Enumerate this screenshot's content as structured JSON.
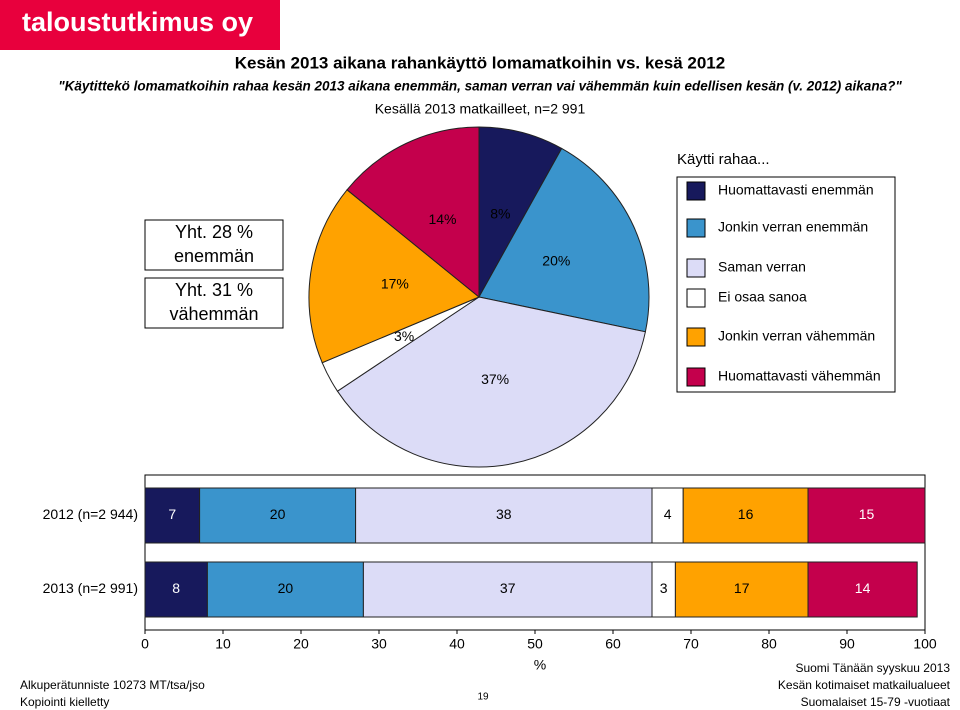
{
  "header": {
    "logo": "taloustutkimus oy",
    "title": "Kesän 2013 aikana rahankäyttö lomamatkoihin vs. kesä 2012",
    "subtitle": "\"Käytittekö lomamatkoihin rahaa kesän 2013 aikana enemmän, saman verran vai vähemmän kuin edellisen kesän (v. 2012) aikana?\""
  },
  "chart_data": [
    {
      "type": "pie",
      "title": "Kesällä 2013 matkailleet, n=2 991",
      "values": [
        8,
        20,
        37,
        3,
        17,
        14
      ],
      "value_labels": [
        "8%",
        "20%",
        "37%",
        "3%",
        "17%",
        "14%"
      ],
      "colors": [
        "#17195c",
        "#3a94cc",
        "#dcdcf7",
        "#ffffff",
        "#ffa200",
        "#c4004c"
      ],
      "annotations": [
        [
          "Yht. 28 %",
          "enemmän"
        ],
        [
          "Yht. 31 %",
          "vähemmän"
        ]
      ]
    },
    {
      "type": "stacked-bar",
      "orientation": "horizontal",
      "categories": [
        "2012 (n=2 944)",
        "2013 (n=2 991)"
      ],
      "legend_title": "Käytti rahaa...",
      "legend": "right",
      "series": [
        {
          "name": "Huomattavasti enemmän",
          "color": "#17195c",
          "values": [
            7,
            8
          ]
        },
        {
          "name": "Jonkin verran enemmän",
          "color": "#3a94cc",
          "values": [
            20,
            20
          ]
        },
        {
          "name": "Saman verran",
          "color": "#dcdcf7",
          "values": [
            38,
            37
          ]
        },
        {
          "name": "Ei osaa sanoa",
          "color": "#ffffff",
          "values": [
            4,
            3
          ]
        },
        {
          "name": "Jonkin verran vähemmän",
          "color": "#ffa200",
          "values": [
            16,
            17
          ]
        },
        {
          "name": "Huomattavasti vähemmän",
          "color": "#c4004c",
          "values": [
            15,
            14
          ]
        }
      ],
      "xlabel": "%",
      "xlim": [
        0,
        100
      ],
      "xticks": [
        0,
        10,
        20,
        30,
        40,
        50,
        60,
        70,
        80,
        90,
        100
      ]
    }
  ],
  "footer": {
    "left": [
      "Alkuperätunniste 10273 MT/tsa/jso",
      "Kopiointi kielletty"
    ],
    "page": "19",
    "right": [
      "Suomi Tänään syyskuu 2013",
      "Kesän kotimaiset matkailualueet",
      "Suomalaiset 15-79 -vuotiaat"
    ]
  }
}
